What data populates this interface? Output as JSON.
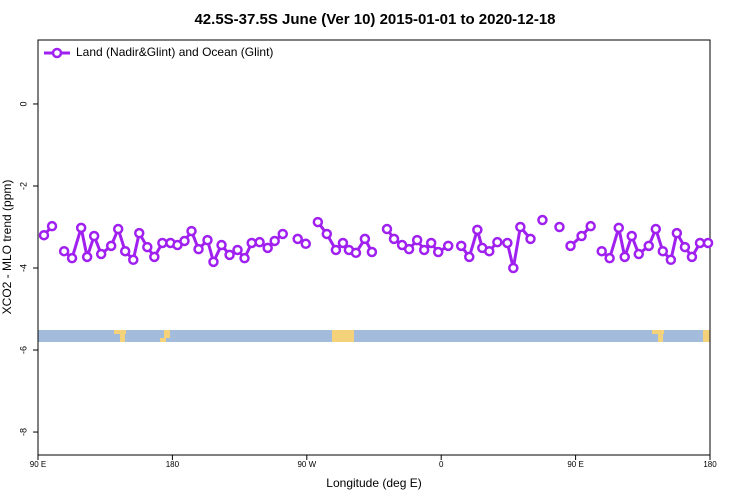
{
  "chart_data": {
    "type": "line",
    "title": "42.5S-37.5S June (Ver 10)   2015-01-01 to 2020-12-18",
    "x_label": "Longitude (deg E)",
    "y_label": "XCO2 - MLO trend (ppm)",
    "xlim": [
      90,
      540
    ],
    "xticks": [
      {
        "value": 90,
        "label": "90 E"
      },
      180,
      {
        "value": 270,
        "label": "90 W"
      },
      {
        "value": 360,
        "label": "0"
      },
      {
        "value": 450,
        "label": "90 E"
      },
      {
        "value": 540,
        "label": "180"
      }
    ],
    "ylim": [
      -8.56,
      1.56
    ],
    "yticks": [
      0,
      -2,
      -4,
      -6,
      -8
    ],
    "legend": "top-left",
    "x": [
      94.0,
      99.4,
      103.5,
      107.5,
      112.8,
      118.9,
      122.9,
      127.6,
      132.3,
      139.0,
      143.7,
      148.4,
      153.8,
      157.8,
      163.2,
      167.9,
      173.3,
      178.7,
      183.4,
      188.1,
      192.8,
      197.5,
      203.5,
      207.5,
      212.9,
      218.3,
      223.6,
      228.3,
      233.1,
      238.4,
      243.8,
      248.5,
      253.9,
      261,
      263.9,
      269.3,
      274,
      277.4,
      283.4,
      289.5,
      294.2,
      298.2,
      302.9,
      308.9,
      313.6,
      319,
      323.7,
      328.4,
      333.8,
      338.5,
      343.9,
      348.6,
      353.3,
      358.0,
      364.7,
      369,
      373.4,
      378.8,
      384.2,
      387.5,
      392.2,
      397.6,
      404.3,
      408.3,
      413.0,
      419.8,
      425,
      427.8,
      433,
      439.2,
      444,
      446.6,
      454.0,
      460.1,
      465,
      467.5,
      472.8,
      478.9,
      482.9,
      487.6,
      492.3,
      499.0,
      503.7,
      508.4,
      513.8,
      517.8,
      523.2,
      527.9,
      533.3,
      538.7
    ],
    "series": [
      {
        "name": "Land (Nadir&Glint) and Ocean (Glint)",
        "color": "#a020f0",
        "values": [
          -3.2,
          -2.98,
          null,
          -3.59,
          -3.76,
          -3.02,
          -3.73,
          -3.22,
          -3.66,
          -3.46,
          -3.05,
          -3.59,
          -3.8,
          -3.15,
          -3.49,
          -3.73,
          -3.39,
          -3.39,
          -3.44,
          -3.34,
          -3.1,
          -3.54,
          -3.32,
          -3.85,
          -3.44,
          -3.68,
          -3.56,
          -3.76,
          -3.39,
          -3.37,
          -3.51,
          -3.34,
          -3.17,
          null,
          -3.29,
          -3.41,
          null,
          -2.88,
          -3.17,
          -3.56,
          -3.39,
          -3.56,
          -3.63,
          -3.29,
          -3.61,
          null,
          -3.05,
          -3.29,
          -3.44,
          -3.54,
          -3.32,
          -3.56,
          -3.39,
          -3.61,
          -3.46,
          null,
          -3.46,
          -3.73,
          -3.07,
          -3.51,
          -3.59,
          -3.37,
          -3.39,
          -4.0,
          -3.0,
          -3.29,
          null,
          -2.83,
          null,
          -3.0,
          null,
          -3.46,
          -3.22,
          -2.98,
          null,
          -3.59,
          -3.76,
          -3.02,
          -3.73,
          -3.22,
          -3.66,
          -3.46,
          -3.05,
          -3.59,
          -3.8,
          -3.15,
          -3.49,
          -3.73,
          -3.39,
          -3.39
        ]
      }
    ]
  }
}
